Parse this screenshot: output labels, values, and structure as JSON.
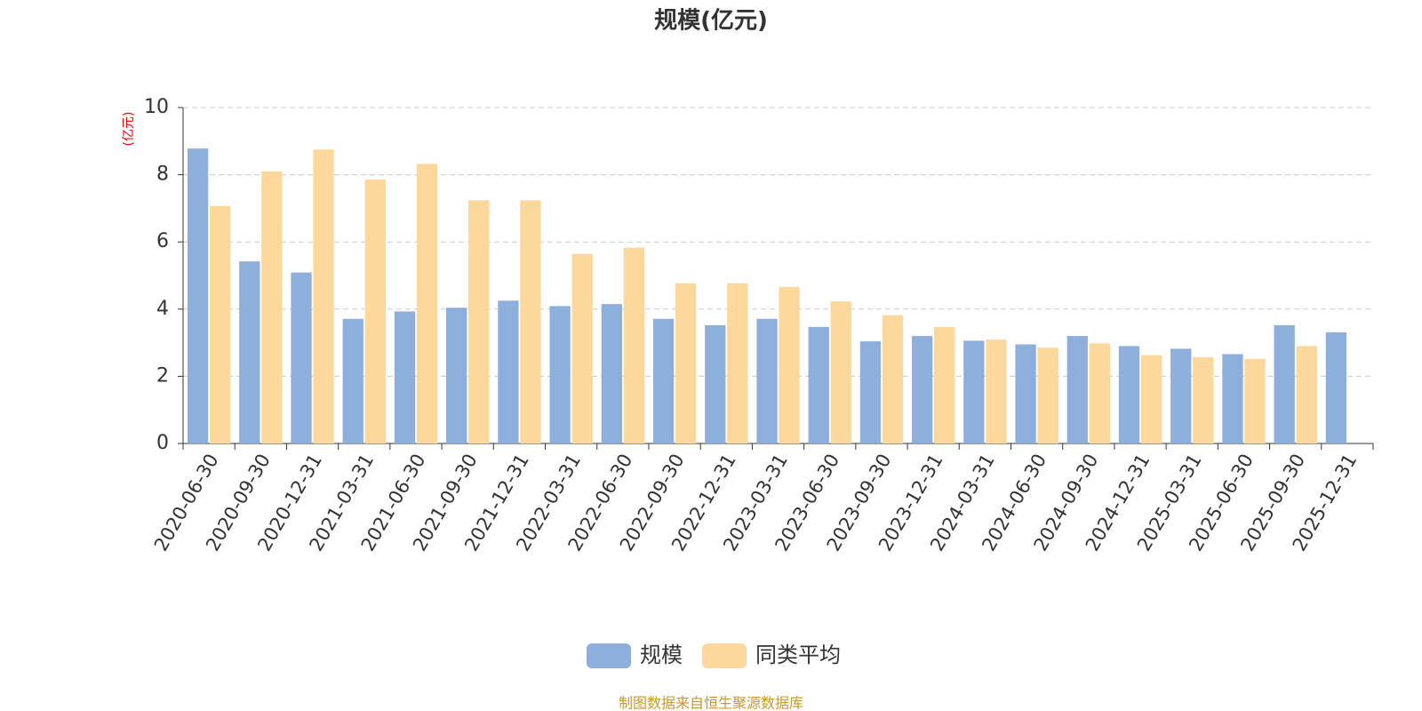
{
  "chart_data": {
    "type": "bar",
    "title": "规模(亿元)",
    "y_axis_label": "(亿元)",
    "categories": [
      "2020-06-30",
      "2020-09-30",
      "2020-12-31",
      "2021-03-31",
      "2021-06-30",
      "2021-09-30",
      "2021-12-31",
      "2022-03-31",
      "2022-06-30",
      "2022-09-30",
      "2022-12-31",
      "2023-03-31",
      "2023-06-30",
      "2023-09-30",
      "2023-12-31",
      "2024-03-31",
      "2024-06-30",
      "2024-09-30",
      "2024-12-31",
      "2025-03-31",
      "2025-06-30",
      "2025-09-30",
      "2025-12-31"
    ],
    "series": [
      {
        "name": "规模",
        "color": "#8eaedb",
        "values": [
          8.78,
          5.42,
          5.09,
          3.71,
          3.93,
          4.04,
          4.25,
          4.09,
          4.15,
          3.71,
          3.52,
          3.71,
          3.47,
          3.04,
          3.2,
          3.06,
          2.95,
          3.2,
          2.9,
          2.82,
          2.66,
          3.52,
          3.31
        ]
      },
      {
        "name": "同类平均",
        "color": "#fdd89c",
        "values": [
          7.07,
          8.1,
          8.75,
          7.86,
          8.32,
          7.24,
          7.24,
          5.64,
          5.83,
          4.77,
          4.77,
          4.66,
          4.23,
          3.82,
          3.47,
          3.09,
          2.85,
          2.98,
          2.63,
          2.57,
          2.52,
          2.9,
          null
        ]
      }
    ],
    "ylim": [
      0,
      10
    ],
    "yticks": [
      0,
      2,
      4,
      6,
      8,
      10
    ],
    "grid": true,
    "legend": "bottom",
    "source": "制图数据来自恒生聚源数据库"
  }
}
